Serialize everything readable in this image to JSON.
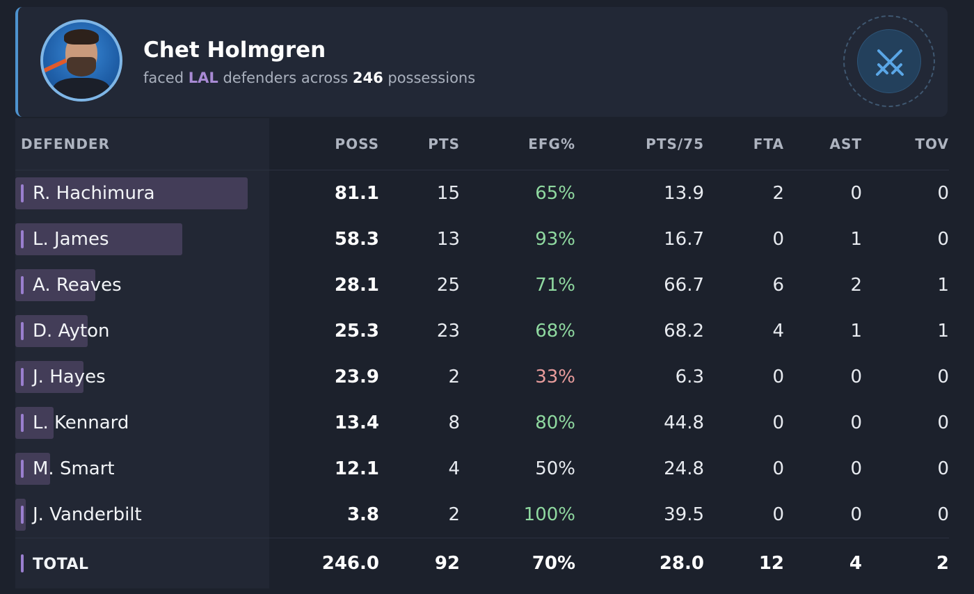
{
  "header": {
    "player_name": "Chet Holmgren",
    "subtitle_prefix": "faced",
    "team": "LAL",
    "subtitle_mid": "defenders across",
    "possessions": "246",
    "subtitle_suffix": "possessions",
    "badge_icon": "crossed-swords-icon",
    "accent_color": "#4e93cf"
  },
  "table": {
    "columns": [
      "DEFENDER",
      "POSS",
      "PTS",
      "EFG%",
      "PTS/75",
      "FTA",
      "AST",
      "TOV"
    ],
    "rows": [
      {
        "defender": "R. Hachimura",
        "poss": "81.1",
        "pts": "15",
        "efg": "65%",
        "pts75": "13.9",
        "fta": "2",
        "ast": "0",
        "tov": "0",
        "share": 0.33,
        "efg_class": "green"
      },
      {
        "defender": "L. James",
        "poss": "58.3",
        "pts": "13",
        "efg": "93%",
        "pts75": "16.7",
        "fta": "0",
        "ast": "1",
        "tov": "0",
        "share": 0.237,
        "efg_class": "green"
      },
      {
        "defender": "A. Reaves",
        "poss": "28.1",
        "pts": "25",
        "efg": "71%",
        "pts75": "66.7",
        "fta": "6",
        "ast": "2",
        "tov": "1",
        "share": 0.114,
        "efg_class": "green"
      },
      {
        "defender": "D. Ayton",
        "poss": "25.3",
        "pts": "23",
        "efg": "68%",
        "pts75": "68.2",
        "fta": "4",
        "ast": "1",
        "tov": "1",
        "share": 0.103,
        "efg_class": "green"
      },
      {
        "defender": "J. Hayes",
        "poss": "23.9",
        "pts": "2",
        "efg": "33%",
        "pts75": "6.3",
        "fta": "0",
        "ast": "0",
        "tov": "0",
        "share": 0.097,
        "efg_class": "red"
      },
      {
        "defender": "L. Kennard",
        "poss": "13.4",
        "pts": "8",
        "efg": "80%",
        "pts75": "44.8",
        "fta": "0",
        "ast": "0",
        "tov": "0",
        "share": 0.054,
        "efg_class": "green"
      },
      {
        "defender": "M. Smart",
        "poss": "12.1",
        "pts": "4",
        "efg": "50%",
        "pts75": "24.8",
        "fta": "0",
        "ast": "0",
        "tov": "0",
        "share": 0.049,
        "efg_class": "neutral"
      },
      {
        "defender": "J. Vanderbilt",
        "poss": "3.8",
        "pts": "2",
        "efg": "100%",
        "pts75": "39.5",
        "fta": "0",
        "ast": "0",
        "tov": "0",
        "share": 0.015,
        "efg_class": "green"
      }
    ],
    "total": {
      "defender": "TOTAL",
      "poss": "246.0",
      "pts": "92",
      "efg": "70%",
      "pts75": "28.0",
      "fta": "12",
      "ast": "4",
      "tov": "2",
      "efg_class": "green"
    },
    "colors": {
      "good": "#8fd9a0",
      "bad": "#e99c9c",
      "bar": "#433d58",
      "accent": "#9a7fcf"
    }
  }
}
